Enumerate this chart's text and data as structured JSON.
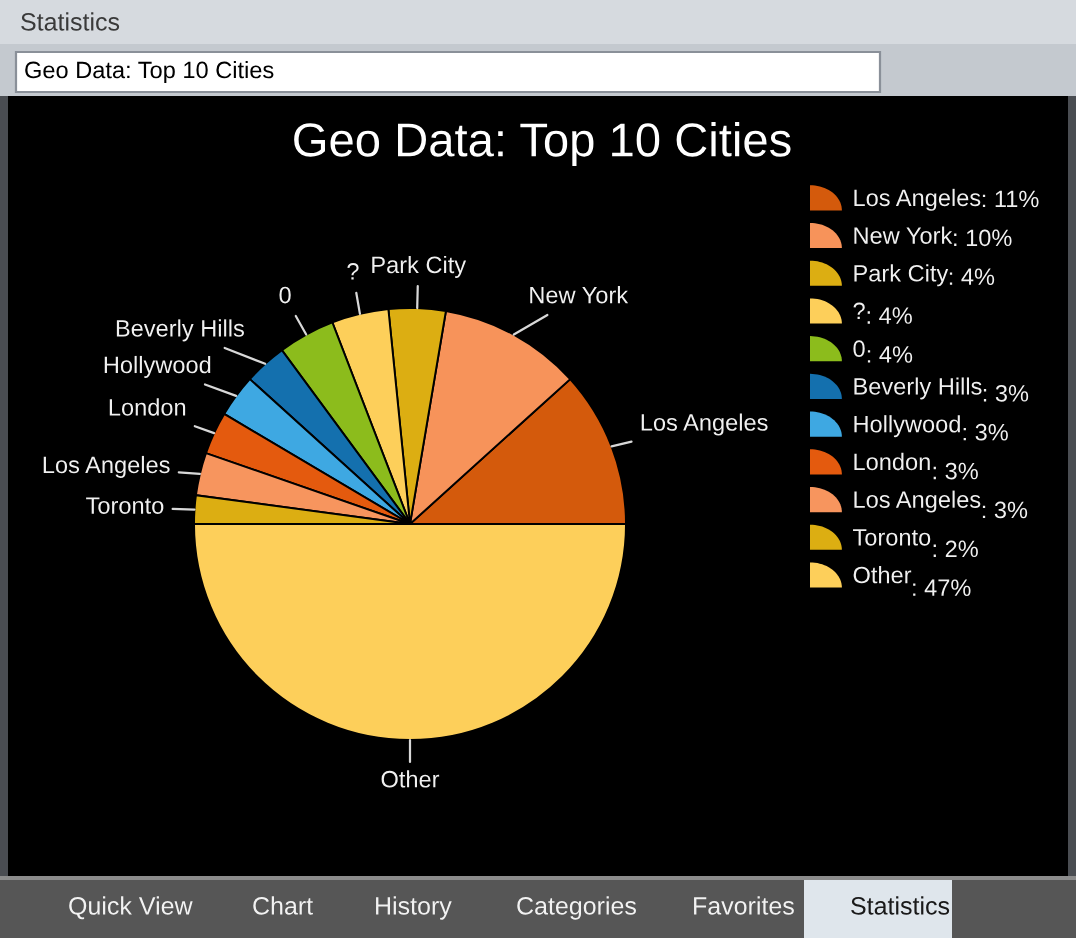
{
  "chart_data": {
    "type": "pie",
    "title": "Geo Data: Top 10 Cities",
    "categories": [
      "Los Angeles",
      "New York",
      "Park City",
      "?",
      "0",
      "Beverly Hills",
      "Hollywood",
      "London",
      "Los Angeles",
      "Toronto",
      "Other"
    ],
    "values": [
      11,
      10,
      4,
      4,
      4,
      3,
      3,
      3,
      3,
      2,
      47
    ],
    "value_labels": [
      ": 11%",
      ": 10%",
      ": 4%",
      ": 4%",
      ": 4%",
      ": 3%",
      ": 3%",
      ": 3%",
      ": 3%",
      ": 2%",
      ": 47%"
    ],
    "colors": [
      "#d45a0c",
      "#f7935a",
      "#dcae12",
      "#fdcf5a",
      "#8cbc1c",
      "#1470ae",
      "#3ea8e2",
      "#e45a0e",
      "#f7955e",
      "#dcae12",
      "#fdcf5a"
    ],
    "legend": "top right",
    "annotations": [
      "Statistics",
      "Geo Data: Top 10 Cities",
      "Quick View",
      "Chart",
      "History",
      "Categories",
      "Favorites",
      "Statistics"
    ]
  }
}
